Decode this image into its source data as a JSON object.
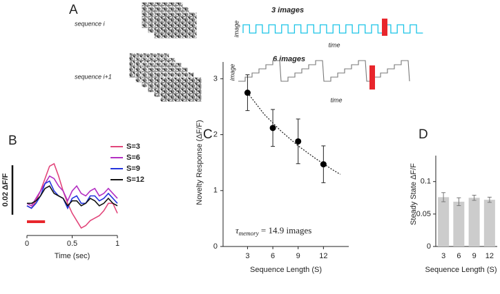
{
  "panel_labels": [
    "A",
    "B",
    "C",
    "D"
  ],
  "schematic": {
    "sequence_a": "sequence i",
    "sequence_b": "sequence i+1",
    "wave_a_title": "3 images",
    "wave_b_title": "6 images",
    "wave_a_ylabel": "image",
    "wave_b_ylabel": "image",
    "wave_a_xlabel": "time",
    "wave_b_xlabel": "time"
  },
  "chart_data": [
    {
      "type": "line",
      "x": [
        0,
        0.05,
        0.1,
        0.15,
        0.2,
        0.25,
        0.3,
        0.35,
        0.4,
        0.45,
        0.5,
        0.55,
        0.6,
        0.65,
        0.7,
        0.75,
        0.8,
        0.85,
        0.9,
        0.95,
        1
      ],
      "series": [
        {
          "name": "S=3",
          "color": "#e2457a",
          "values": [
            0,
            -0.001,
            0.002,
            0.006,
            0.011,
            0.016,
            0.017,
            0.012,
            0.006,
            0.001,
            -0.003,
            -0.006,
            -0.009,
            -0.008,
            -0.006,
            -0.005,
            -0.004,
            -0.002,
            0.001,
            0.001,
            -0.003
          ]
        },
        {
          "name": "S=6",
          "color": "#b32ec2",
          "values": [
            0.001,
            0,
            0.003,
            0.006,
            0.009,
            0.012,
            0.011,
            0.008,
            0.006,
            0.002,
            0.006,
            0.008,
            0.005,
            0.004,
            0.006,
            0.007,
            0.004,
            0.005,
            0.007,
            0.005,
            0.003
          ]
        },
        {
          "name": "S=9",
          "color": "#2233dd",
          "values": [
            0,
            -0.001,
            0.001,
            0.004,
            0.009,
            0.01,
            0.006,
            0.004,
            0.003,
            -0.001,
            0.003,
            0.004,
            0.001,
            0.001,
            0.004,
            0.004,
            0.002,
            0.003,
            0.005,
            0.003,
            0.001
          ]
        },
        {
          "name": "S=12",
          "color": "#111111",
          "values": [
            0.001,
            0.001,
            0.002,
            0.004,
            0.007,
            0.008,
            0.005,
            0.004,
            0.003,
            0,
            0.002,
            0.002,
            0,
            0.001,
            0.003,
            0.002,
            0,
            0.001,
            0.003,
            0.001,
            0
          ]
        }
      ],
      "xlim": [
        0,
        1
      ],
      "xticks": [
        0,
        0.5,
        1
      ],
      "ylim": [
        -0.012,
        0.02
      ],
      "xlabel": "Time (sec)",
      "scale_bar": {
        "value": 0.02,
        "label": "0.02 ΔF/F"
      },
      "stimulus_x": [
        0,
        0.2
      ],
      "stimulus_color": "#e8262c"
    },
    {
      "type": "scatter",
      "x": [
        3,
        6,
        9,
        12
      ],
      "values": [
        2.75,
        2.12,
        1.88,
        1.47
      ],
      "errors": [
        0.32,
        0.33,
        0.4,
        0.33
      ],
      "xlim": [
        0.1,
        15
      ],
      "ylim": [
        0,
        3.3
      ],
      "xticks": [
        3,
        6,
        9,
        12
      ],
      "yticks": [
        0,
        1,
        2,
        3
      ],
      "xlabel": "Sequence Length (S)",
      "ylabel": "Novelty Response (ΔF/F)",
      "fit": {
        "x": [
          3,
          5,
          7,
          9,
          11,
          13,
          14
        ],
        "y": [
          2.75,
          2.36,
          2.06,
          1.8,
          1.58,
          1.38,
          1.29
        ]
      },
      "annotation": {
        "symbol": "τ",
        "subscript": "memory",
        "text": " = 14.9 images"
      }
    },
    {
      "type": "bar",
      "categories": [
        "3",
        "6",
        "9",
        "12"
      ],
      "values": [
        0.076,
        0.069,
        0.075,
        0.072
      ],
      "errors": [
        0.007,
        0.006,
        0.004,
        0.004
      ],
      "color": "#cccccc",
      "ylim": [
        0,
        0.14
      ],
      "yticks": [
        0,
        0.05,
        0.1
      ],
      "xlabel": "Sequence Length (S)",
      "ylabel": "Steady State ΔF/F"
    }
  ]
}
